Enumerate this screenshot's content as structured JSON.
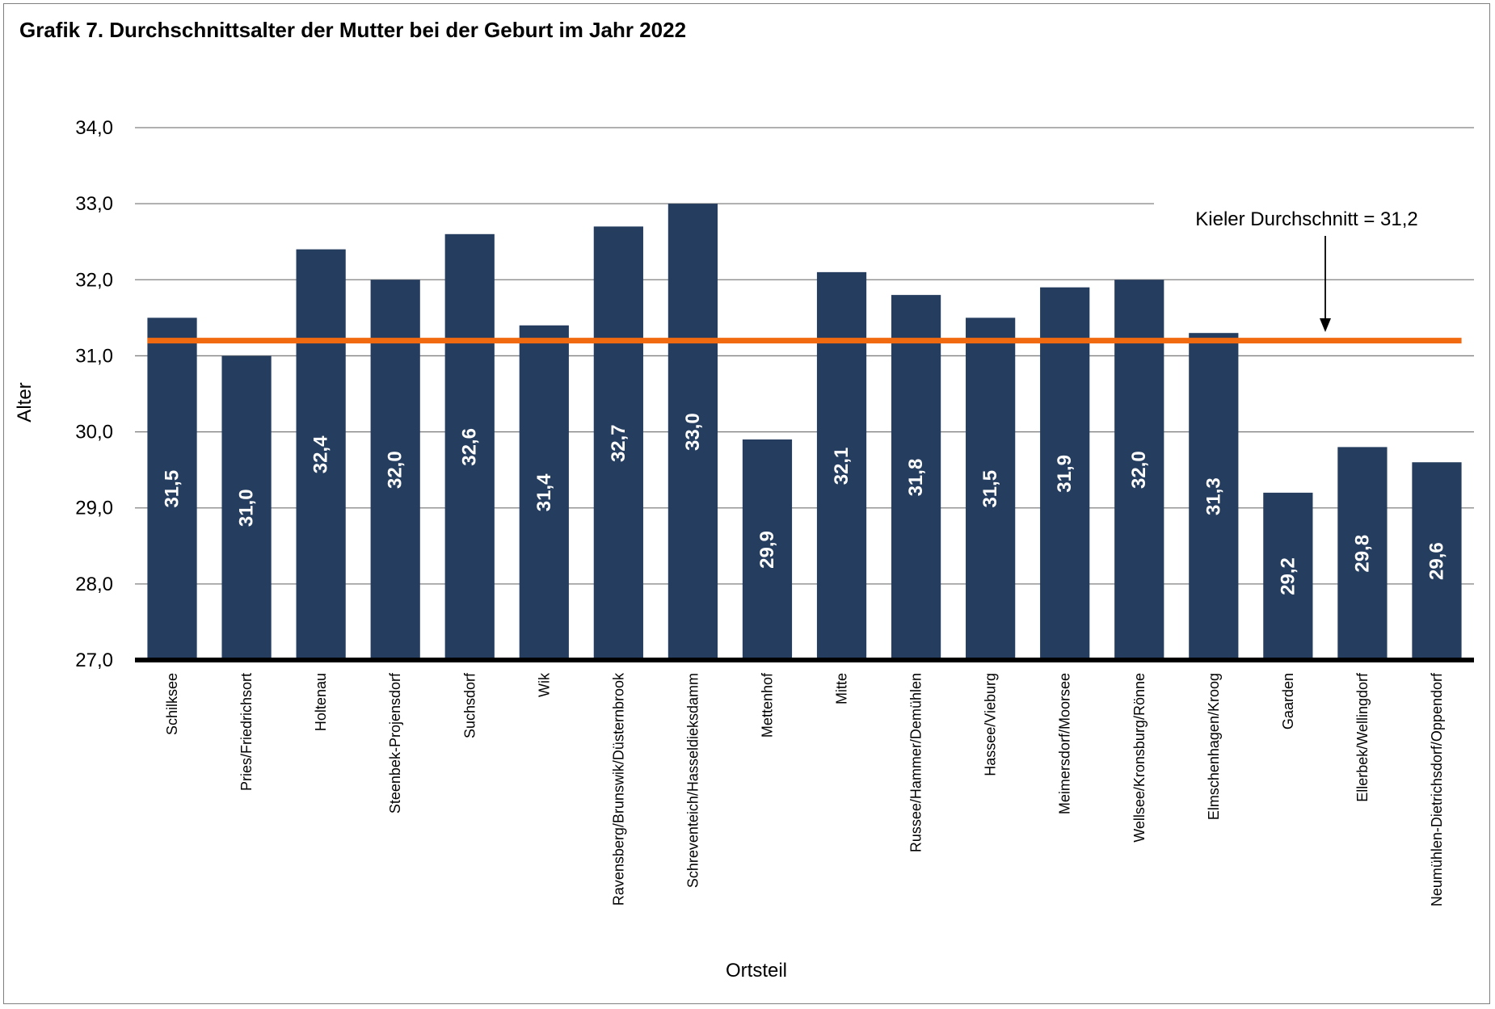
{
  "title": "Grafik 7. Durchschnittsalter der Mutter bei der Geburt im Jahr 2022",
  "colors": {
    "bar": "#253d5e",
    "average_line": "#f26a10",
    "grid": "#808080",
    "axis": "#000000",
    "bar_label": "#ffffff"
  },
  "chart_data": {
    "type": "bar",
    "title": "Grafik 7. Durchschnittsalter der Mutter bei der Geburt im Jahr 2022",
    "xlabel": "Ortsteil",
    "ylabel": "Alter",
    "ylim": [
      27,
      34
    ],
    "yticks": [
      "27,0",
      "28,0",
      "29,0",
      "30,0",
      "31,0",
      "32,0",
      "33,0",
      "34,0"
    ],
    "grid": true,
    "categories": [
      "Schilksee",
      "Pries/Friedrichsort",
      "Holtenau",
      "Steenbek-Projensdorf",
      "Suchsdorf",
      "Wik",
      "Ravensberg/Brunswik/Düsternbrook",
      "Schreventeich/Hasseldieksdamm",
      "Mettenhof",
      "Mitte",
      "Russee/Hammer/Demühlen",
      "Hassee/Vieburg",
      "Meimersdorf/Moorsee",
      "Wellsee/Kronsburg/Rönne",
      "Elmschenhagen/Kroog",
      "Gaarden",
      "Ellerbek/Wellingdorf",
      "Neumühlen-Dietrichsdorf/Oppendorf"
    ],
    "values": [
      31.5,
      31.0,
      32.4,
      32.0,
      32.6,
      31.4,
      32.7,
      33.0,
      29.9,
      32.1,
      31.8,
      31.5,
      31.9,
      32.0,
      31.3,
      29.2,
      29.8,
      29.6
    ],
    "value_labels": [
      "31,5",
      "31,0",
      "32,4",
      "32,0",
      "32,6",
      "31,4",
      "32,7",
      "33,0",
      "29,9",
      "32,1",
      "31,8",
      "31,5",
      "31,9",
      "32,0",
      "31,3",
      "29,2",
      "29,8",
      "29,6"
    ],
    "reference_line": {
      "value": 31.2,
      "label": "Kieler Durchschnitt = 31,2"
    }
  }
}
